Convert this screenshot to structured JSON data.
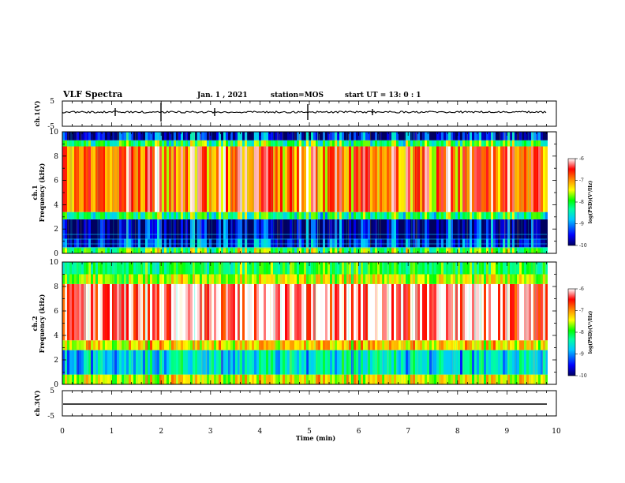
{
  "header": {
    "title": "VLF Spectra",
    "date": "Jan. 1 , 2021",
    "station": "station=MOS",
    "start": "start UT =  13: 0  : 1"
  },
  "chart_data": {
    "type": "heatmap",
    "xlabel": "Time (min)",
    "xlim": [
      0,
      10
    ],
    "xticks": [
      "0",
      "1",
      "2",
      "3",
      "4",
      "5",
      "6",
      "7",
      "8",
      "9",
      "10"
    ],
    "waveform_ch1": {
      "ylabel": "ch.1(V)",
      "ylim": [
        -5,
        5
      ],
      "yticks": [
        "5",
        "-5"
      ]
    },
    "spectrogram_ch1": {
      "ylabel_1": "ch.1",
      "ylabel_2": "Frequency (kHz)",
      "ylim": [
        0,
        10
      ],
      "yticks": [
        "0",
        "2",
        "4",
        "6",
        "8",
        "10"
      ],
      "colorbar_label": "log(PSD)(V²/Hz)",
      "colorbar_range": [
        -10,
        -6
      ],
      "colorbar_ticks": [
        "-6",
        "-7",
        "-8",
        "-9",
        "-10"
      ],
      "bands": [
        {
          "f_lo": 0.0,
          "f_hi": 0.5,
          "level": -8.0
        },
        {
          "f_lo": 0.5,
          "f_hi": 1.2,
          "level": -9.5
        },
        {
          "f_lo": 1.2,
          "f_hi": 2.8,
          "level": -9.8
        },
        {
          "f_lo": 2.8,
          "f_hi": 3.4,
          "level": -8.3
        },
        {
          "f_lo": 3.4,
          "f_hi": 8.8,
          "level": -6.8
        },
        {
          "f_lo": 8.8,
          "f_hi": 9.3,
          "level": -8.2
        },
        {
          "f_lo": 9.3,
          "f_hi": 10.0,
          "level": -9.6
        }
      ]
    },
    "spectrogram_ch2": {
      "ylabel_1": "ch.2",
      "ylabel_2": "Frequency (kHz)",
      "ylim": [
        0,
        10
      ],
      "yticks": [
        "0",
        "2",
        "4",
        "6",
        "8",
        "10"
      ],
      "colorbar_label": "log(PSD)(V²/Hz)",
      "colorbar_range": [
        -10,
        -6
      ],
      "colorbar_ticks": [
        "-6",
        "-7",
        "-8",
        "-9",
        "-10"
      ],
      "bands": [
        {
          "f_lo": 0.0,
          "f_hi": 0.8,
          "level": -7.5
        },
        {
          "f_lo": 0.8,
          "f_hi": 2.8,
          "level": -8.8
        },
        {
          "f_lo": 2.8,
          "f_hi": 3.6,
          "level": -7.4
        },
        {
          "f_lo": 3.6,
          "f_hi": 8.2,
          "level": -6.2
        },
        {
          "f_lo": 8.2,
          "f_hi": 9.0,
          "level": -7.6
        },
        {
          "f_lo": 9.0,
          "f_hi": 10.0,
          "level": -8.2
        }
      ]
    },
    "waveform_ch3": {
      "ylabel": "ch.3(V)",
      "ylim": [
        -5,
        5
      ],
      "yticks": [
        "5",
        "-5"
      ]
    }
  },
  "colors": {
    "colormap": [
      "#000080",
      "#0000ff",
      "#00b4ff",
      "#00ffcc",
      "#00ff00",
      "#ffff00",
      "#ff8800",
      "#ff0000",
      "#ffffff"
    ]
  }
}
